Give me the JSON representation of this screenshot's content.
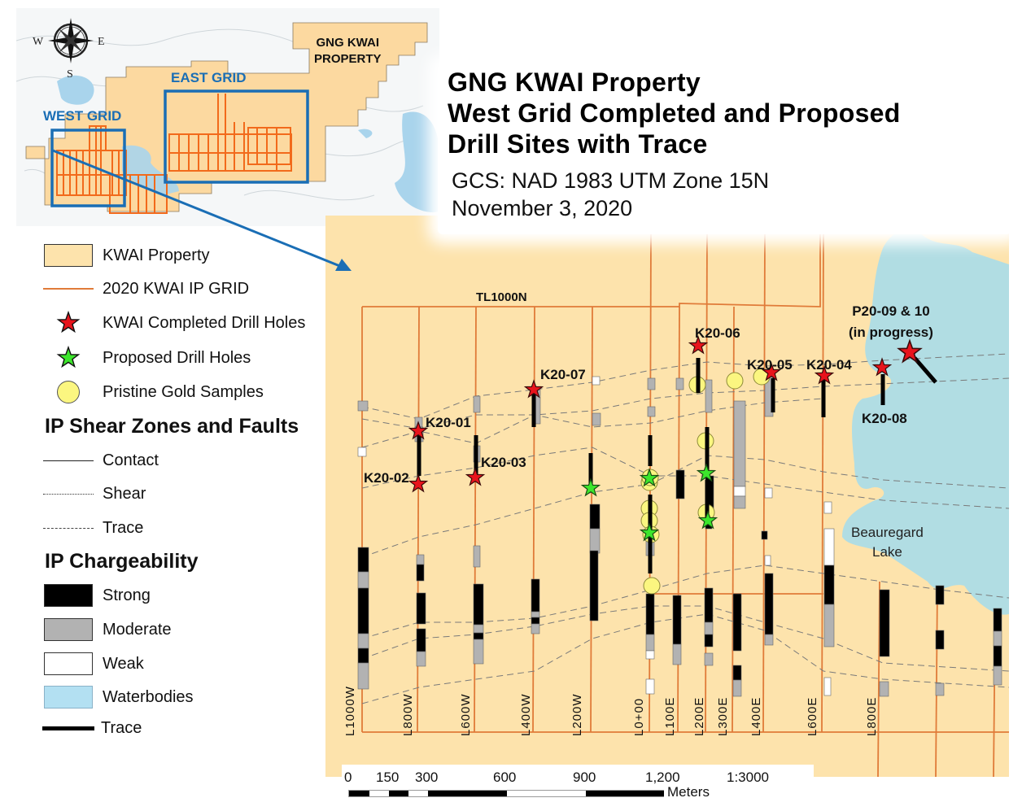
{
  "title": {
    "line1": "GNG KWAI Property",
    "line2": "West Grid Completed and Proposed",
    "line3": "Drill Sites with Trace",
    "gcs": "GCS: NAD 1983 UTM Zone 15N",
    "date": "November 3, 2020"
  },
  "inset": {
    "property_label_1": "GNG KWAI",
    "property_label_2": "PROPERTY",
    "east_grid_label": "EAST GRID",
    "west_grid_label": "WEST GRID",
    "compass": {
      "w": "W",
      "e": "E",
      "s": "S"
    }
  },
  "legend": {
    "items": [
      {
        "label": "KWAI Property",
        "symbol": "property-swatch",
        "color": "#fde3ac"
      },
      {
        "label": "2020 KWAI IP GRID",
        "symbol": "orange-line",
        "color": "#e07b39"
      },
      {
        "label": "KWAI Completed Drill Holes",
        "symbol": "red-star",
        "color": "#e8141c"
      },
      {
        "label": "Proposed Drill Holes",
        "symbol": "green-star",
        "color": "#3ce62c"
      },
      {
        "label": "Pristine Gold Samples",
        "symbol": "yellow-circle",
        "color": "#fbf680"
      }
    ],
    "shear_heading": "IP Shear Zones and Faults",
    "shear_items": [
      {
        "label": "Contact",
        "style": "solid"
      },
      {
        "label": "Shear",
        "style": "dotted"
      },
      {
        "label": "Trace",
        "style": "dash-dot"
      }
    ],
    "charge_heading": "IP Chargeability",
    "charge_items": [
      {
        "label": "Strong",
        "color": "#000000"
      },
      {
        "label": "Moderate",
        "color": "#b2b2b2"
      },
      {
        "label": "Weak",
        "color": "#ffffff"
      },
      {
        "label": "Waterbodies",
        "color": "#b3e0f2"
      },
      {
        "label": "Trace",
        "color": "#000000",
        "style": "thick-line"
      }
    ]
  },
  "map": {
    "baseline_label": "TL1000N",
    "lake_label_1": "Beauregard",
    "lake_label_2": "Lake",
    "grid_lines": [
      "L1000W",
      "L800W",
      "L600W",
      "L400W",
      "L200W",
      "L0+00",
      "L100E",
      "L200E",
      "L300E",
      "L400E",
      "L600E",
      "L800E"
    ],
    "completed_holes": [
      {
        "id": "K20-01"
      },
      {
        "id": "K20-02"
      },
      {
        "id": "K20-03"
      },
      {
        "id": "K20-04"
      },
      {
        "id": "K20-05"
      },
      {
        "id": "K20-06"
      },
      {
        "id": "K20-07"
      },
      {
        "id": "K20-08"
      }
    ],
    "in_progress_label_1": "P20-09 & 10",
    "in_progress_label_2": "(in progress)",
    "colors": {
      "property": "#fde3ac",
      "grid": "#e07b39",
      "water": "#b1dde3",
      "inset_box": "#1a6eb5"
    }
  },
  "scale": {
    "ticks": [
      "0",
      "150",
      "300",
      "600",
      "900",
      "1,200"
    ],
    "unit": "Meters",
    "ratio": "1:3000"
  }
}
